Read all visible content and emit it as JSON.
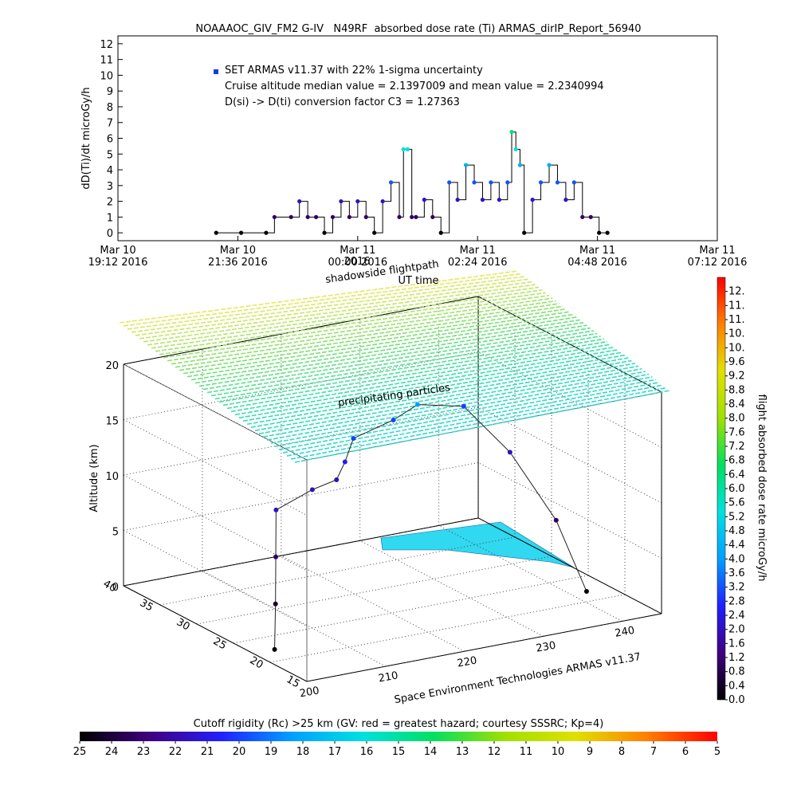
{
  "chart_data": [
    {
      "type": "line",
      "title": "NOAAAOC_GIV_FM2 G-IV   N49RF  absorbed dose rate (Ti) ARMAS_dirIP_Report_56940",
      "y_label": "dD(Ti)/dt microGy/h",
      "annotations": [
        "SET ARMAS v11.37 with 22% 1-sigma uncertainty",
        "Cruise altitude median value = 2.1397009 and mean value = 2.2340994",
        "D(si) -> D(ti) conversion factor C3 = 1.27363"
      ],
      "legend_color": "#1040e0",
      "line_color": "#000000",
      "x": [
        "2016-03-10 21:10",
        "2016-03-10 21:40",
        "2016-03-10 22:10",
        "2016-03-10 22:20",
        "2016-03-10 22:40",
        "2016-03-10 22:50",
        "2016-03-10 23:00",
        "2016-03-10 23:10",
        "2016-03-10 23:20",
        "2016-03-10 23:30",
        "2016-03-10 23:40",
        "2016-03-10 23:50",
        "2016-03-11 00:00",
        "2016-03-11 00:10",
        "2016-03-11 00:20",
        "2016-03-11 00:30",
        "2016-03-11 00:40",
        "2016-03-11 00:50",
        "2016-03-11 00:55",
        "2016-03-11 01:00",
        "2016-03-11 01:05",
        "2016-03-11 01:10",
        "2016-03-11 01:20",
        "2016-03-11 01:30",
        "2016-03-11 01:40",
        "2016-03-11 01:50",
        "2016-03-11 02:00",
        "2016-03-11 02:10",
        "2016-03-11 02:20",
        "2016-03-11 02:30",
        "2016-03-11 02:40",
        "2016-03-11 02:50",
        "2016-03-11 03:00",
        "2016-03-11 03:05",
        "2016-03-11 03:10",
        "2016-03-11 03:15",
        "2016-03-11 03:20",
        "2016-03-11 03:30",
        "2016-03-11 03:40",
        "2016-03-11 03:50",
        "2016-03-11 04:00",
        "2016-03-11 04:10",
        "2016-03-11 04:20",
        "2016-03-11 04:30",
        "2016-03-11 04:40",
        "2016-03-11 04:50",
        "2016-03-11 05:00"
      ],
      "values": [
        0,
        0,
        0,
        1,
        1,
        2,
        1,
        1,
        0,
        1,
        2,
        1,
        2,
        1,
        0,
        2,
        3.2,
        1,
        5.3,
        5.3,
        1,
        1,
        2.1,
        1,
        0,
        3.2,
        2.1,
        4.3,
        3.2,
        2.1,
        3.2,
        2.1,
        3.2,
        6.4,
        5.3,
        4.3,
        0,
        2.1,
        3.2,
        4.3,
        3.2,
        2.1,
        3.2,
        1,
        1,
        0,
        0
      ],
      "xlim": [
        "2016-03-10 19:12",
        "2016-03-11 07:12"
      ],
      "xticks": [
        {
          "value": "2016-03-10 19:12",
          "label": [
            "Mar 10",
            "19:12 2016"
          ]
        },
        {
          "value": "2016-03-10 21:36",
          "label": [
            "Mar 10",
            "21:36 2016"
          ]
        },
        {
          "value": "2016-03-11 00:00",
          "label": [
            "Mar 11",
            "00:00 2016"
          ]
        },
        {
          "value": "2016-03-11 02:24",
          "label": [
            "Mar 11",
            "02:24 2016"
          ]
        },
        {
          "value": "2016-03-11 04:48",
          "label": [
            "Mar 11",
            "04:48 2016"
          ]
        },
        {
          "value": "2016-03-11 07:12",
          "label": [
            "Mar 11",
            "07:12 2016"
          ]
        }
      ],
      "ylim": [
        -0.5,
        12.5
      ],
      "yticks": [
        0,
        1,
        2,
        3,
        4,
        5,
        6,
        7,
        8,
        9,
        10,
        11,
        12
      ]
    },
    {
      "type": "scatter3d",
      "title": "shadowside flightpath",
      "annotations": [
        "2016",
        "UT time",
        "precipitating particles"
      ],
      "footer": "Space Environment Technologies ARMAS v11.37",
      "z_label": "Altitude (km)",
      "xlim": [
        200,
        245
      ],
      "xticks": [
        200,
        210,
        220,
        230,
        240
      ],
      "ylim": [
        15,
        40
      ],
      "yticks": [
        15,
        20,
        25,
        30,
        35,
        40
      ],
      "zlim": [
        0,
        20
      ],
      "zticks": [
        0,
        5,
        10,
        15,
        20
      ],
      "x": [
        202.7,
        203,
        203.5,
        204,
        210,
        214,
        216,
        218,
        224,
        228,
        232,
        236,
        240,
        242
      ],
      "y": [
        22.3,
        22.5,
        23,
        23.5,
        25,
        26,
        27,
        28,
        29,
        30,
        28,
        26,
        24,
        22
      ],
      "z": [
        0,
        4,
        8,
        12,
        12.5,
        12.5,
        13.5,
        15,
        15.5,
        16,
        16,
        12,
        6,
        0
      ],
      "color_values": [
        0,
        0.5,
        1,
        2,
        2,
        2,
        2.5,
        3,
        3,
        4,
        3,
        2,
        1,
        0
      ]
    },
    {
      "type": "colorbar",
      "title": "flight absorbed dose rate microGy/h",
      "colors": [
        "#000000",
        "#400080",
        "#2020ff",
        "#00a0ff",
        "#00e0e0",
        "#00e060",
        "#a0e000",
        "#e0e000",
        "#ff8000",
        "#ff0000"
      ],
      "ylim": [
        0,
        12
      ],
      "yticks": [
        {
          "value": 0,
          "label": "0.0"
        },
        0.4,
        0.8,
        1.2,
        1.6,
        {
          "value": 2,
          "label": "2.0"
        },
        2.4,
        2.8,
        3.2,
        3.6,
        {
          "value": 4,
          "label": "4.0"
        },
        4.4,
        4.8,
        5.2,
        5.6,
        {
          "value": 6,
          "label": "6.0"
        },
        6.4,
        6.8,
        7.2,
        7.6,
        {
          "value": 8,
          "label": "8.0"
        },
        8.4,
        8.8,
        9.2,
        9.6,
        {
          "value": 10,
          "label": "10."
        },
        {
          "value": 10.4,
          "label": "10."
        },
        {
          "value": 10.8,
          "label": "11."
        },
        {
          "value": 11.2,
          "label": "11."
        },
        {
          "value": 11.6,
          "label": "12."
        }
      ]
    },
    {
      "type": "colorbar",
      "title": "Cutoff rigidity (Rc) >25 km (GV: red = greatest hazard; courtesy SSSRC; Kp=4)",
      "colors": [
        "#000000",
        "#400080",
        "#2020ff",
        "#00a0ff",
        "#00e0e0",
        "#00e060",
        "#a0e000",
        "#e0e000",
        "#ff8000",
        "#ff0000"
      ],
      "xlim": [
        25,
        5
      ],
      "xticks": [
        25,
        24,
        23,
        22,
        21,
        20,
        19,
        18,
        17,
        16,
        15,
        14,
        13,
        12,
        11,
        10,
        9,
        8,
        7,
        6,
        5
      ]
    }
  ]
}
